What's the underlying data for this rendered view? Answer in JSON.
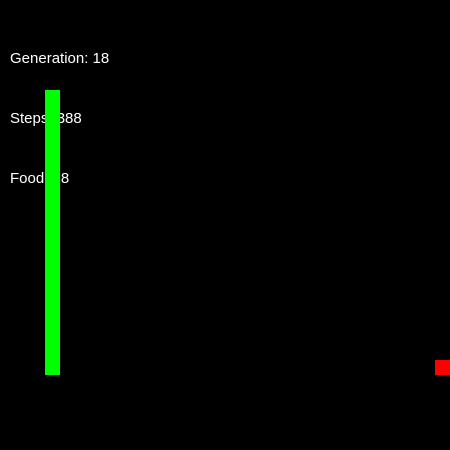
{
  "hud": {
    "generation": "Generation: 18",
    "steps": "Steps: 388",
    "food": "Food: 18"
  },
  "colors": {
    "background": "#000000",
    "snake": "#00ff00",
    "food": "#ff0000",
    "text": "#ffffff"
  }
}
